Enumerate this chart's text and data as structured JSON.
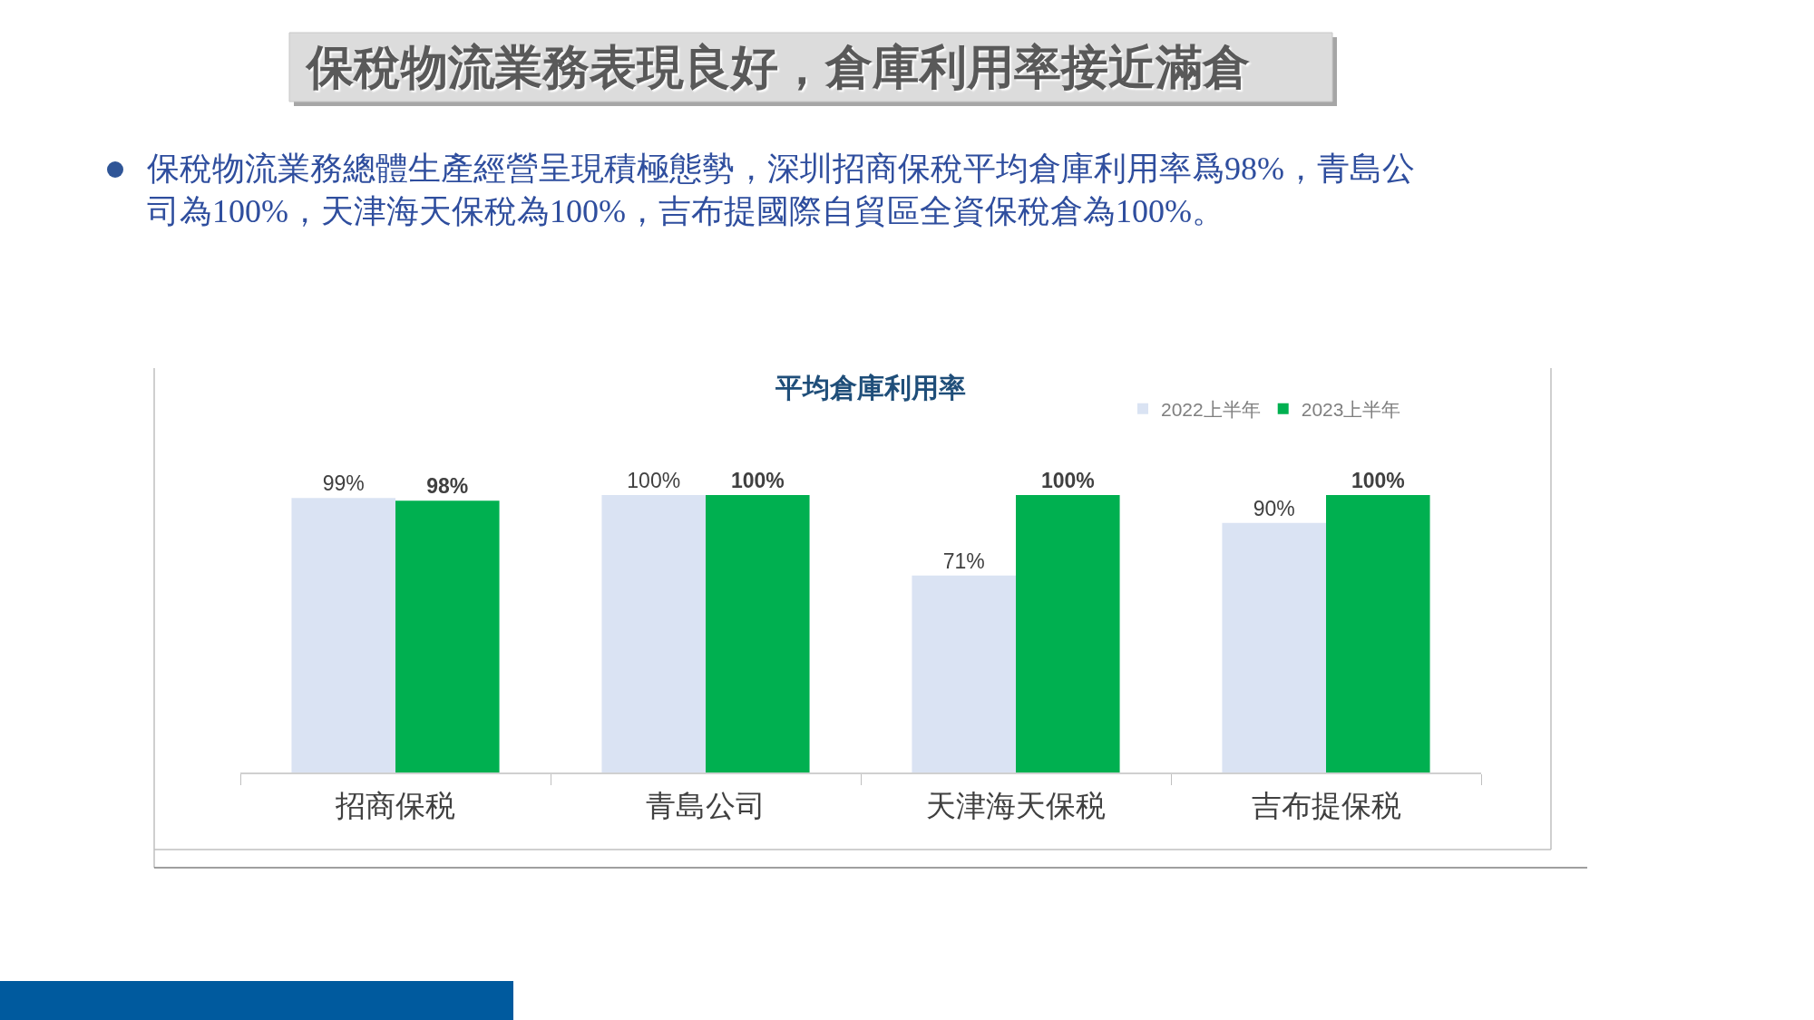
{
  "chart_data": {
    "type": "bar",
    "title": "平均倉庫利用率",
    "annotations": [
      "保稅物流業務表現良好，倉庫利用率接近滿倉",
      "保稅物流業務總體生產經營呈現積極態勢，深圳招商保稅平均倉庫利用率爲98%，青島公司為100%，天津海天保稅為100%，吉布提國際自貿區全資保稅倉為100%。"
    ],
    "categories": [
      "招商保税",
      "青島公司",
      "天津海天保税",
      "吉布提保税"
    ],
    "series": [
      {
        "name": "2022上半年",
        "color": "#dae3f3",
        "values": [
          99,
          100,
          71,
          90
        ],
        "value_labels": [
          "99%",
          "100%",
          "71%",
          "90%"
        ]
      },
      {
        "name": "2023上半年",
        "color": "#00b050",
        "values": [
          98,
          100,
          100,
          100
        ],
        "value_labels": [
          "98%",
          "100%",
          "100%",
          "100%"
        ]
      }
    ],
    "tick_labels": "x",
    "legend": "top right"
  }
}
